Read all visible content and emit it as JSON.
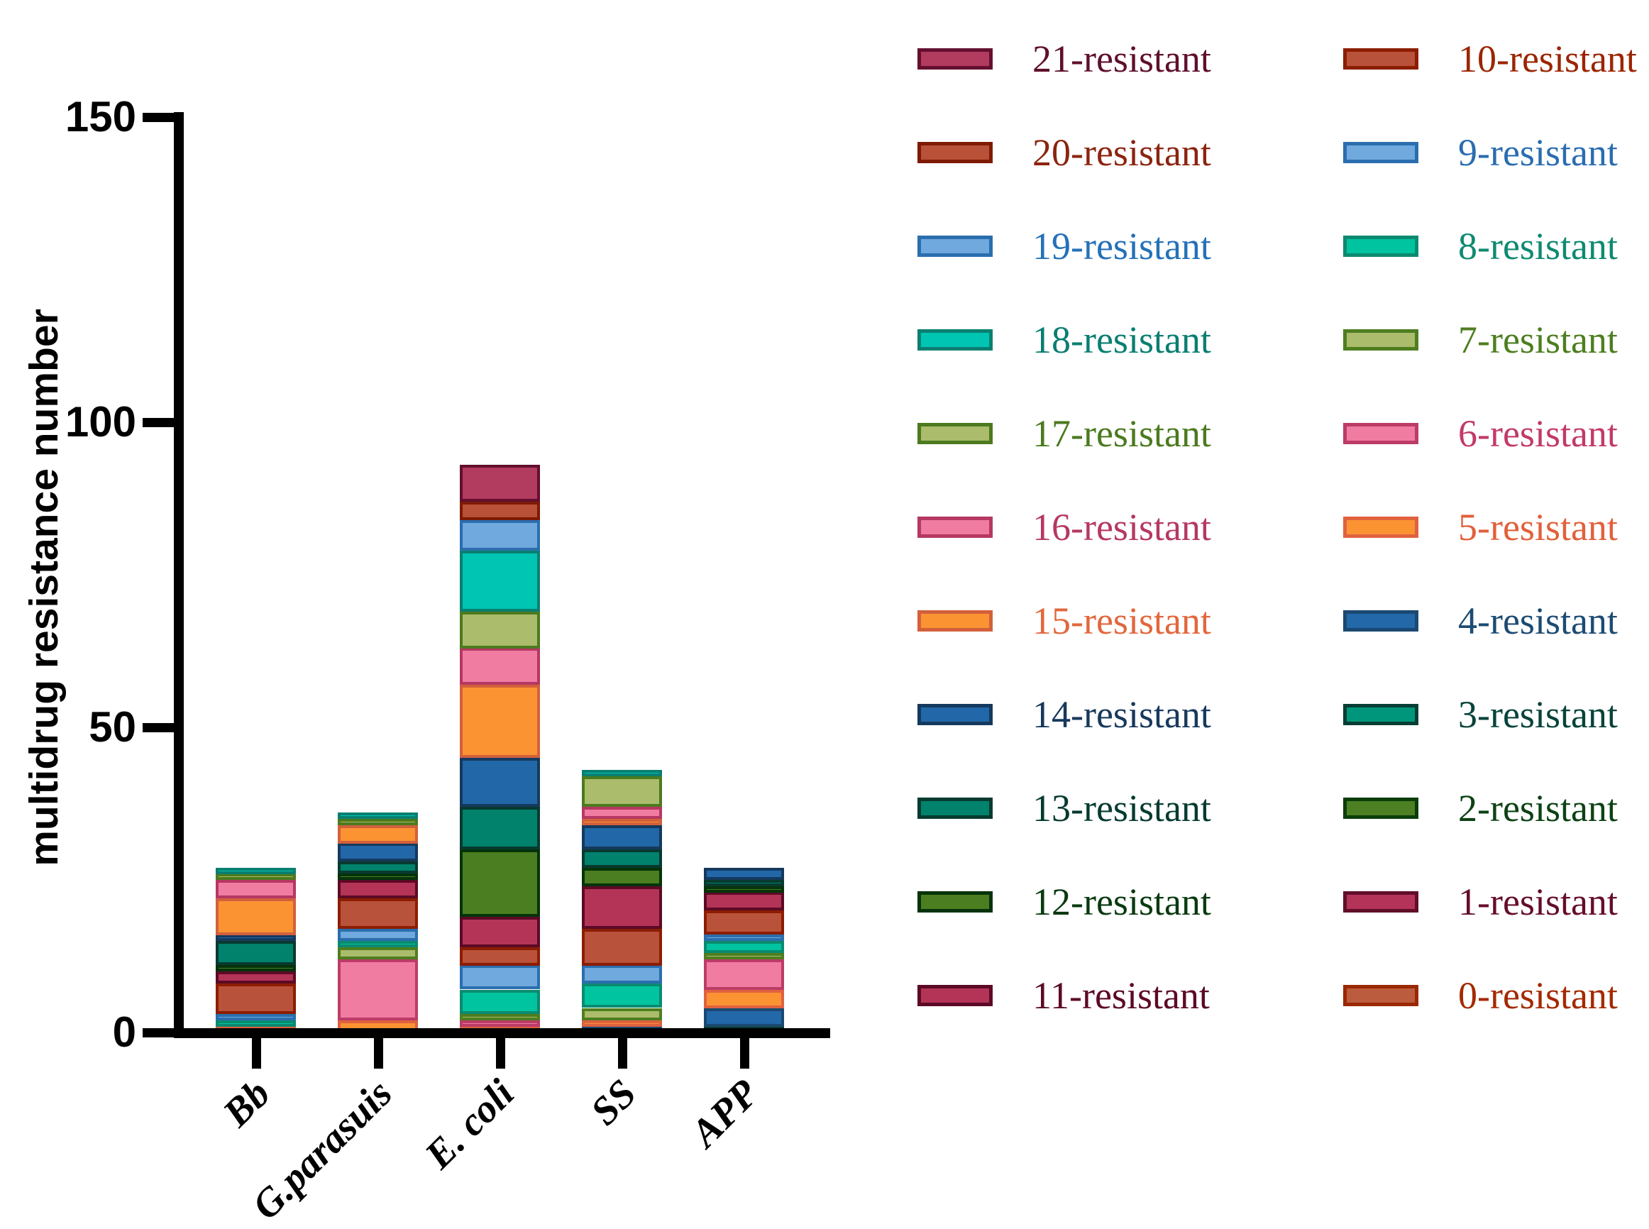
{
  "chart_data": {
    "type": "bar-stacked",
    "title": "",
    "xlabel": "",
    "ylabel": "multidrug resistance number",
    "ylim": [
      0,
      150
    ],
    "yticks": [
      0,
      50,
      100,
      150
    ],
    "x_categories": [
      "Bb",
      "G.parasuis",
      "E. coli",
      "SS",
      "APP"
    ],
    "grid": false,
    "legend_position": "right, two columns, 21-resistant down to 0-resistant",
    "bars": [
      {
        "category": "Bb",
        "total": 27,
        "segments": [
          [
            "5-resistant",
            1
          ],
          [
            "8-resistant",
            1
          ],
          [
            "9-resistant",
            1
          ],
          [
            "10-resistant",
            5
          ],
          [
            "11-resistant",
            2
          ],
          [
            "12-resistant",
            1
          ],
          [
            "13-resistant",
            4
          ],
          [
            "14-resistant",
            1
          ],
          [
            "15-resistant",
            6
          ],
          [
            "16-resistant",
            3
          ],
          [
            "17-resistant",
            1
          ],
          [
            "18-resistant",
            1
          ]
        ]
      },
      {
        "category": "G.parasuis",
        "total": 36,
        "segments": [
          [
            "5-resistant",
            2
          ],
          [
            "6-resistant",
            10
          ],
          [
            "7-resistant",
            2
          ],
          [
            "8-resistant",
            1
          ],
          [
            "9-resistant",
            2
          ],
          [
            "10-resistant",
            5
          ],
          [
            "11-resistant",
            3
          ],
          [
            "12-resistant",
            1
          ],
          [
            "13-resistant",
            2
          ],
          [
            "14-resistant",
            3
          ],
          [
            "15-resistant",
            3
          ],
          [
            "17-resistant",
            1
          ],
          [
            "18-resistant",
            1
          ]
        ]
      },
      {
        "category": "E. coli",
        "total": 93,
        "segments": [
          [
            "5-resistant",
            1
          ],
          [
            "6-resistant",
            1
          ],
          [
            "7-resistant",
            1
          ],
          [
            "8-resistant",
            4
          ],
          [
            "9-resistant",
            4
          ],
          [
            "10-resistant",
            3
          ],
          [
            "11-resistant",
            5
          ],
          [
            "12-resistant",
            11
          ],
          [
            "13-resistant",
            7
          ],
          [
            "14-resistant",
            8
          ],
          [
            "15-resistant",
            12
          ],
          [
            "16-resistant",
            6
          ],
          [
            "17-resistant",
            6
          ],
          [
            "18-resistant",
            10
          ],
          [
            "19-resistant",
            5
          ],
          [
            "20-resistant",
            3
          ],
          [
            "21-resistant",
            6
          ]
        ]
      },
      {
        "category": "SS",
        "total": 43,
        "segments": [
          [
            "4-resistant",
            1
          ],
          [
            "5-resistant",
            1
          ],
          [
            "7-resistant",
            2
          ],
          [
            "8-resistant",
            4
          ],
          [
            "9-resistant",
            3
          ],
          [
            "10-resistant",
            6
          ],
          [
            "11-resistant",
            7
          ],
          [
            "12-resistant",
            3
          ],
          [
            "13-resistant",
            3
          ],
          [
            "14-resistant",
            4
          ],
          [
            "15-resistant",
            1
          ],
          [
            "16-resistant",
            2
          ],
          [
            "17-resistant",
            5
          ],
          [
            "18-resistant",
            1
          ]
        ]
      },
      {
        "category": "APP",
        "total": 27,
        "segments": [
          [
            "3-resistant",
            1
          ],
          [
            "4-resistant",
            3
          ],
          [
            "5-resistant",
            3
          ],
          [
            "6-resistant",
            5
          ],
          [
            "7-resistant",
            1
          ],
          [
            "8-resistant",
            2
          ],
          [
            "9-resistant",
            1
          ],
          [
            "10-resistant",
            4
          ],
          [
            "11-resistant",
            3
          ],
          [
            "12-resistant",
            1
          ],
          [
            "13-resistant",
            1
          ],
          [
            "14-resistant",
            2
          ]
        ]
      }
    ]
  },
  "palette": {
    "21-resistant": {
      "fill": "#B23B60",
      "border": "#640F2F",
      "text": "#5F0F2D"
    },
    "20-resistant": {
      "fill": "#B85138",
      "border": "#7E1A02",
      "text": "#8B2410"
    },
    "19-resistant": {
      "fill": "#6FA9DD",
      "border": "#2A6EAE",
      "text": "#2471B8"
    },
    "18-resistant": {
      "fill": "#00C5B2",
      "border": "#0A7F71",
      "text": "#0A7E72"
    },
    "17-resistant": {
      "fill": "#ABBC6C",
      "border": "#4C7A1E",
      "text": "#4B7A1F"
    },
    "16-resistant": {
      "fill": "#F07CA2",
      "border": "#B53862",
      "text": "#B53861"
    },
    "15-resistant": {
      "fill": "#FB9333",
      "border": "#D2603C",
      "text": "#E2673D"
    },
    "14-resistant": {
      "fill": "#2268A8",
      "border": "#15395E",
      "text": "#17395C"
    },
    "13-resistant": {
      "fill": "#00826D",
      "border": "#083A2F",
      "text": "#053A30"
    },
    "12-resistant": {
      "fill": "#4B7E20",
      "border": "#05330B",
      "text": "#0A3A10"
    },
    "11-resistant": {
      "fill": "#B43458",
      "border": "#5C0A26",
      "text": "#5C0A26"
    },
    "10-resistant": {
      "fill": "#B9523A",
      "border": "#8C1D00",
      "text": "#9B2500"
    },
    "9-resistant": {
      "fill": "#6FA9DD",
      "border": "#2A6EAE",
      "text": "#2B6CB0"
    },
    "8-resistant": {
      "fill": "#00C4A0",
      "border": "#0B8A70",
      "text": "#0E8A70"
    },
    "7-resistant": {
      "fill": "#ABBC6C",
      "border": "#4E7E20",
      "text": "#4E7E1F"
    },
    "6-resistant": {
      "fill": "#F07CA2",
      "border": "#BC3C67",
      "text": "#C23A68"
    },
    "5-resistant": {
      "fill": "#FB9333",
      "border": "#E06140",
      "text": "#E2603B"
    },
    "4-resistant": {
      "fill": "#2368A9",
      "border": "#1A4971",
      "text": "#1C4B73"
    },
    "3-resistant": {
      "fill": "#00967B",
      "border": "#063E33",
      "text": "#07433A"
    },
    "2-resistant": {
      "fill": "#4C8022",
      "border": "#0B3D0B",
      "text": "#0D4214"
    },
    "1-resistant": {
      "fill": "#B43358",
      "border": "#610E2B",
      "text": "#650D2B"
    },
    "0-resistant": {
      "fill": "#BC5C3E",
      "border": "#9A2800",
      "text": "#A32A00"
    }
  },
  "legend": {
    "columns": [
      [
        "21-resistant",
        "20-resistant",
        "19-resistant",
        "18-resistant",
        "17-resistant",
        "16-resistant",
        "15-resistant",
        "14-resistant",
        "13-resistant",
        "12-resistant",
        "11-resistant"
      ],
      [
        "10-resistant",
        "9-resistant",
        "8-resistant",
        "7-resistant",
        "6-resistant",
        "5-resistant",
        "4-resistant",
        "3-resistant",
        "2-resistant",
        "1-resistant",
        "0-resistant"
      ]
    ]
  }
}
